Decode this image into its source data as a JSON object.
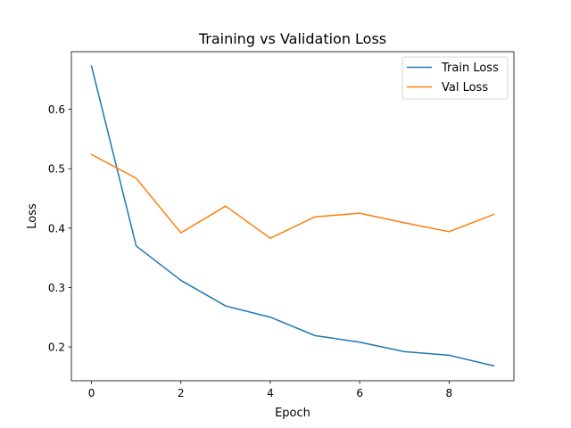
{
  "chart_data": {
    "type": "line",
    "title": "Training vs Validation Loss",
    "xlabel": "Epoch",
    "ylabel": "Loss",
    "x": [
      0,
      1,
      2,
      3,
      4,
      5,
      6,
      7,
      8,
      9
    ],
    "xticks": [
      0,
      2,
      4,
      6,
      8
    ],
    "xtick_labels": [
      "0",
      "2",
      "4",
      "6",
      "8"
    ],
    "yticks": [
      0.2,
      0.3,
      0.4,
      0.5,
      0.6
    ],
    "ytick_labels": [
      "0.2",
      "0.3",
      "0.4",
      "0.5",
      "0.6"
    ],
    "xlim": [
      -0.45,
      9.45
    ],
    "ylim": [
      0.143,
      0.697
    ],
    "grid": false,
    "legend_position": "top-right",
    "series": [
      {
        "name": "Train Loss",
        "color": "#1f77b4",
        "values": [
          0.673,
          0.37,
          0.312,
          0.269,
          0.25,
          0.219,
          0.208,
          0.192,
          0.186,
          0.168
        ]
      },
      {
        "name": "Val Loss",
        "color": "#ff7f0e",
        "values": [
          0.524,
          0.484,
          0.392,
          0.437,
          0.383,
          0.419,
          0.425,
          0.409,
          0.394,
          0.423
        ]
      }
    ]
  }
}
